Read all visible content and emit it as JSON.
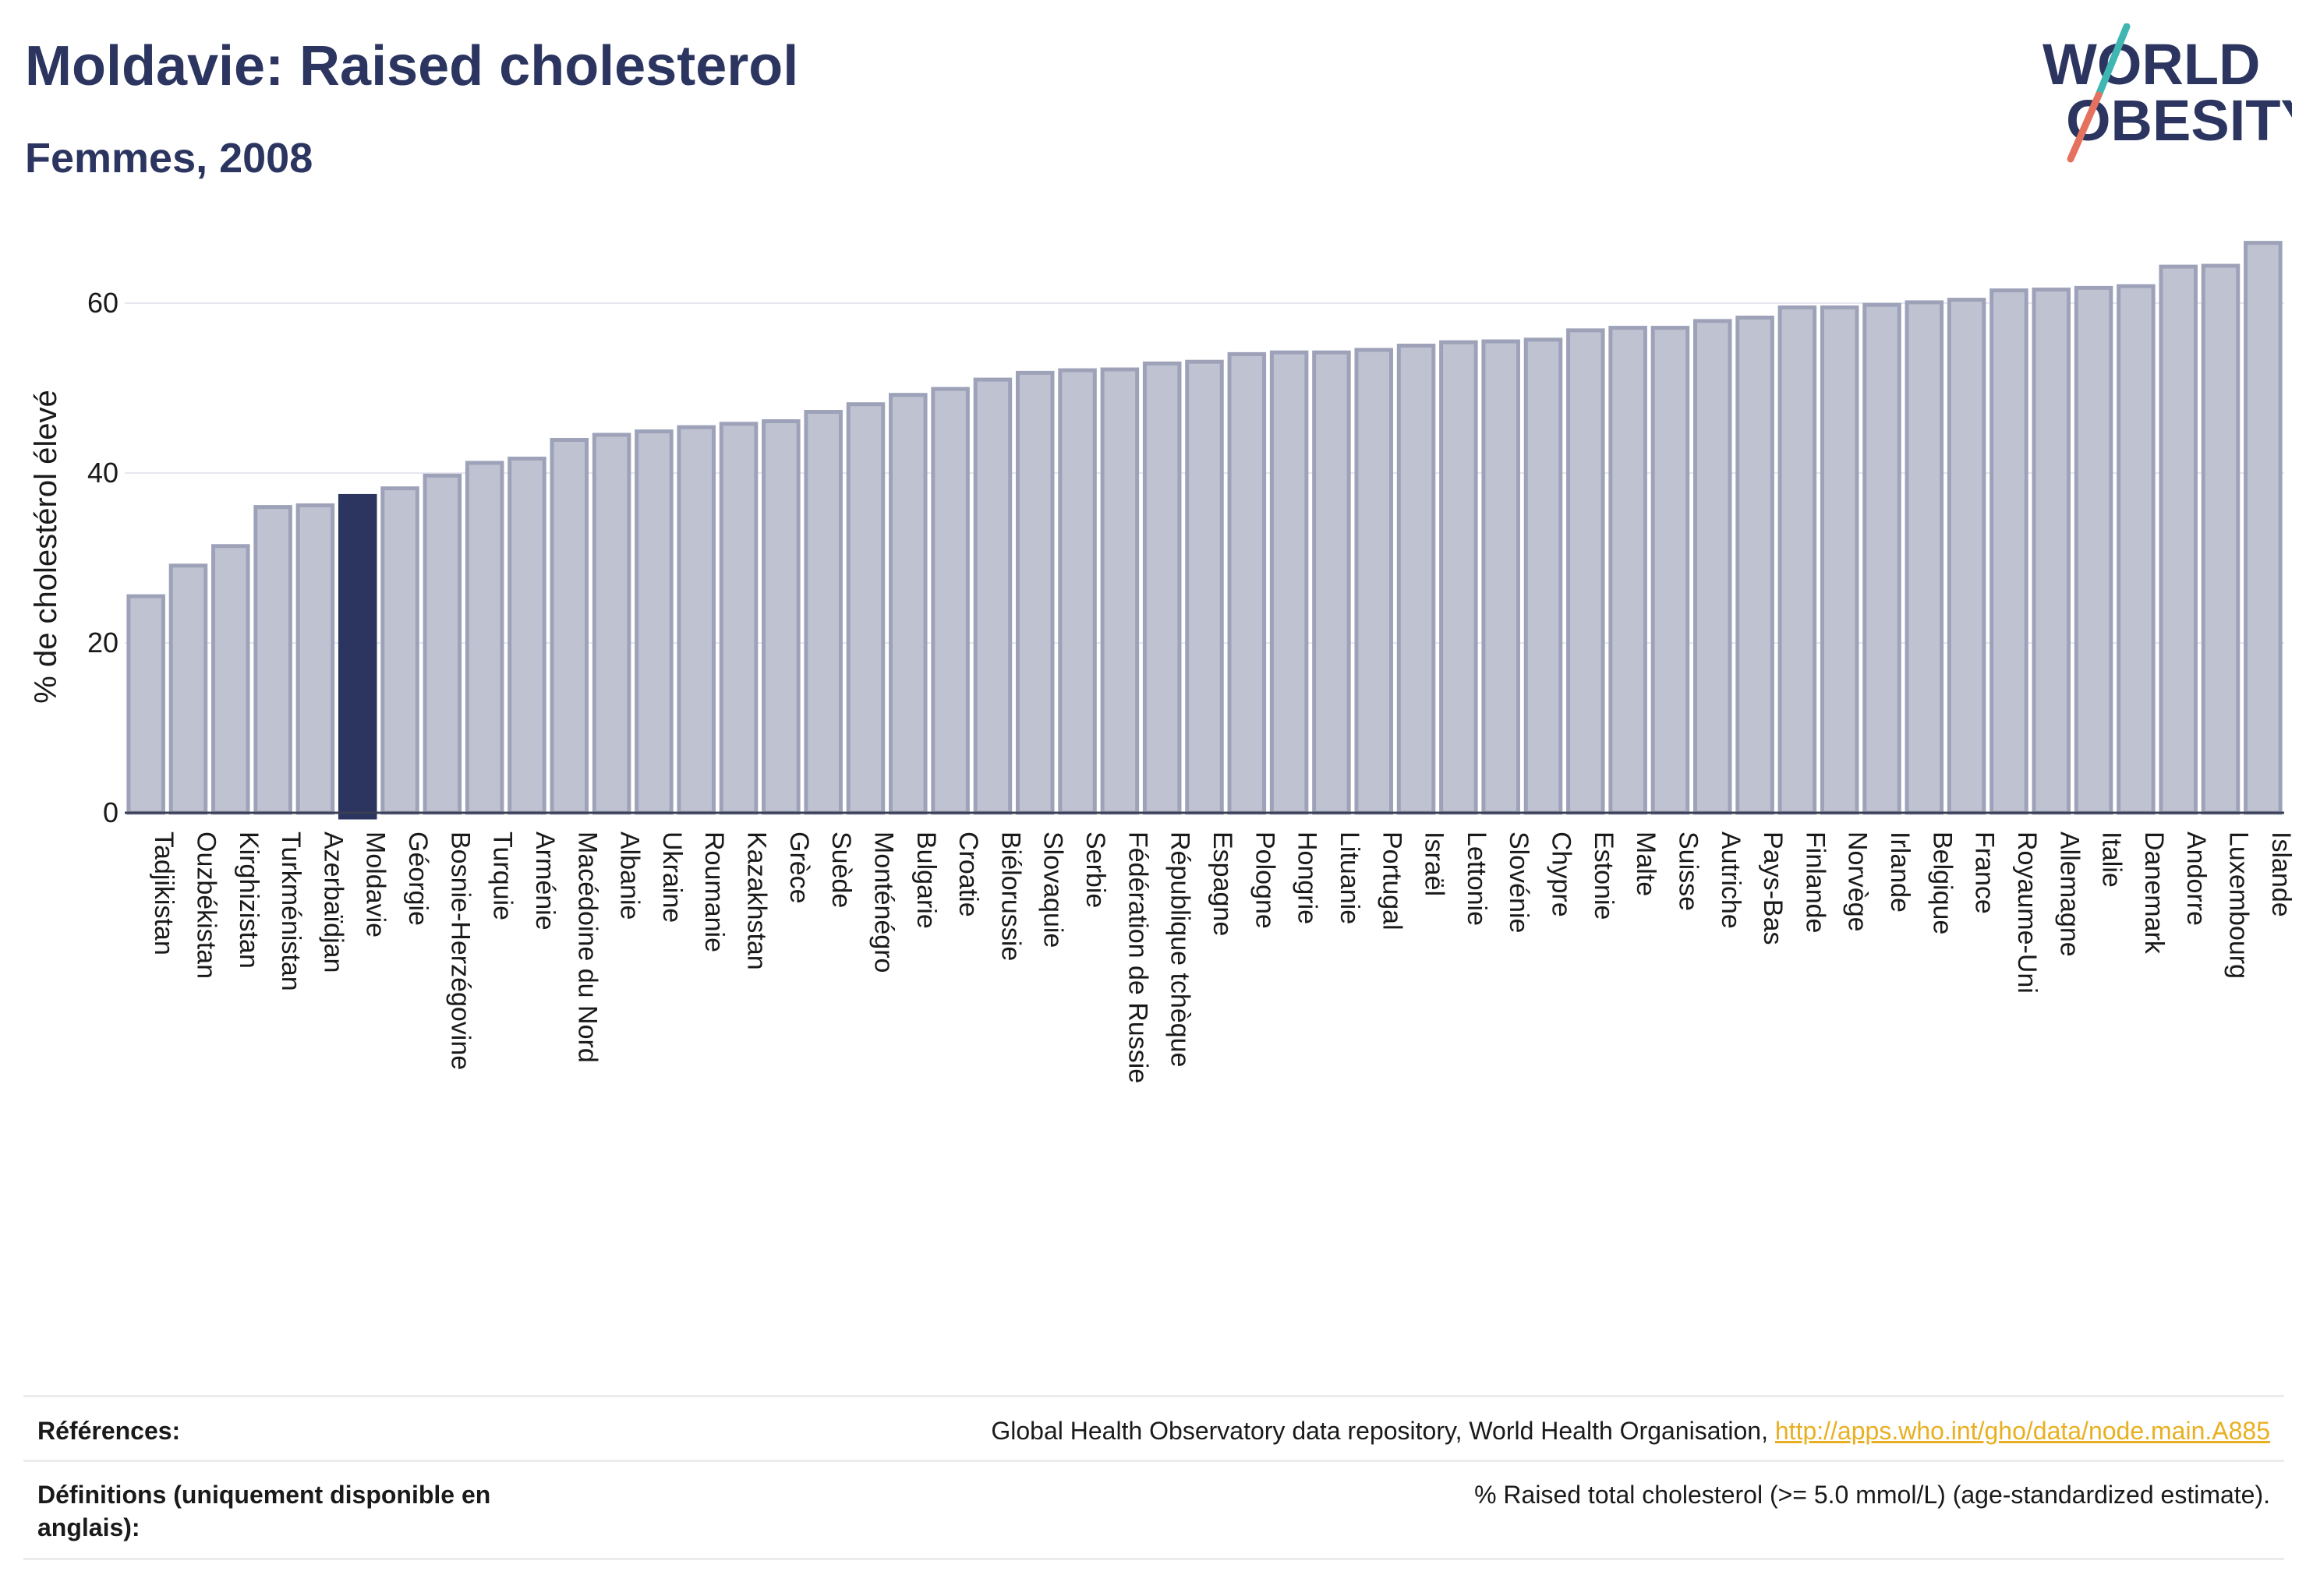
{
  "header": {
    "title": "Moldavie: Raised cholesterol",
    "subtitle": "Femmes, 2008"
  },
  "logo": {
    "line1": "WORLD",
    "line2": "OBESITY"
  },
  "colors": {
    "bar": "#bfc2d1",
    "bar_stroke": "#9da2b9",
    "highlight": "#2b3560",
    "accent_teal": "#3fb6b2",
    "accent_coral": "#e5725e",
    "link": "#e8b021"
  },
  "chart_data": {
    "type": "bar",
    "title": "Moldavie: Raised cholesterol",
    "subtitle": "Femmes, 2008",
    "ylabel": "% de cholestérol élevé",
    "ylim": [
      0,
      70
    ],
    "yticks": [
      0,
      20,
      40,
      60
    ],
    "grid": true,
    "highlight": "Moldavie",
    "categories": [
      "Tadjikistan",
      "Ouzbékistan",
      "Kirghizistan",
      "Turkménistan",
      "Azerbaïdjan",
      "Moldavie",
      "Géorgie",
      "Bosnie-Herzégovine",
      "Turquie",
      "Arménie",
      "Macédoine du Nord",
      "Albanie",
      "Ukraine",
      "Roumanie",
      "Kazakhstan",
      "Grèce",
      "Suède",
      "Monténégro",
      "Bulgarie",
      "Croatie",
      "Biélorussie",
      "Slovaquie",
      "Serbie",
      "Fédération de Russie",
      "République tchèque",
      "Espagne",
      "Pologne",
      "Hongrie",
      "Lituanie",
      "Portugal",
      "Israël",
      "Lettonie",
      "Slovénie",
      "Chypre",
      "Estonie",
      "Malte",
      "Suisse",
      "Autriche",
      "Pays-Bas",
      "Finlande",
      "Norvège",
      "Irlande",
      "Belgique",
      "France",
      "Royaume-Uni",
      "Allemagne",
      "Italie",
      "Danemark",
      "Andorre",
      "Luxembourg",
      "Islande"
    ],
    "values": [
      25.5,
      29.1,
      31.4,
      36.0,
      36.2,
      37.3,
      38.2,
      39.7,
      41.2,
      41.7,
      43.9,
      44.5,
      44.9,
      45.4,
      45.8,
      46.1,
      47.2,
      48.1,
      49.2,
      49.9,
      51.0,
      51.8,
      52.1,
      52.2,
      52.9,
      53.1,
      54.0,
      54.2,
      54.2,
      54.5,
      55.0,
      55.4,
      55.5,
      55.7,
      56.8,
      57.1,
      57.1,
      57.9,
      58.3,
      59.5,
      59.5,
      59.8,
      60.1,
      60.4,
      61.5,
      61.6,
      61.8,
      62.0,
      64.3,
      64.4,
      67.1
    ]
  },
  "footer": {
    "references_label": "Références:",
    "references_text": "Global Health Observatory data repository, World Health Organisation, ",
    "references_link": "http://apps.who.int/gho/data/node.main.A885",
    "definitions_label": "Définitions (uniquement disponible en anglais):",
    "definitions_text": "% Raised total cholesterol (>= 5.0 mmol/L) (age-standardized estimate)."
  }
}
